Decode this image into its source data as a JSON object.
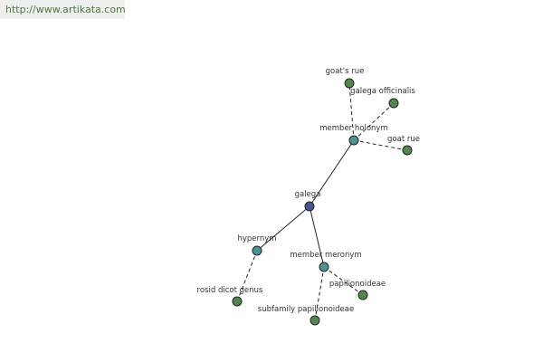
{
  "header": {
    "url": "http://www.artikata.com"
  },
  "nodes": [
    {
      "label": "galega"
    },
    {
      "label": "member holonym"
    },
    {
      "label": "hypernym"
    },
    {
      "label": "member meronym"
    },
    {
      "label": "goat's rue"
    },
    {
      "label": "galega officinalis"
    },
    {
      "label": "goat rue"
    },
    {
      "label": "rosid dicot genus"
    },
    {
      "label": "papilionoideae"
    },
    {
      "label": "subfamily papilionoideae"
    }
  ]
}
